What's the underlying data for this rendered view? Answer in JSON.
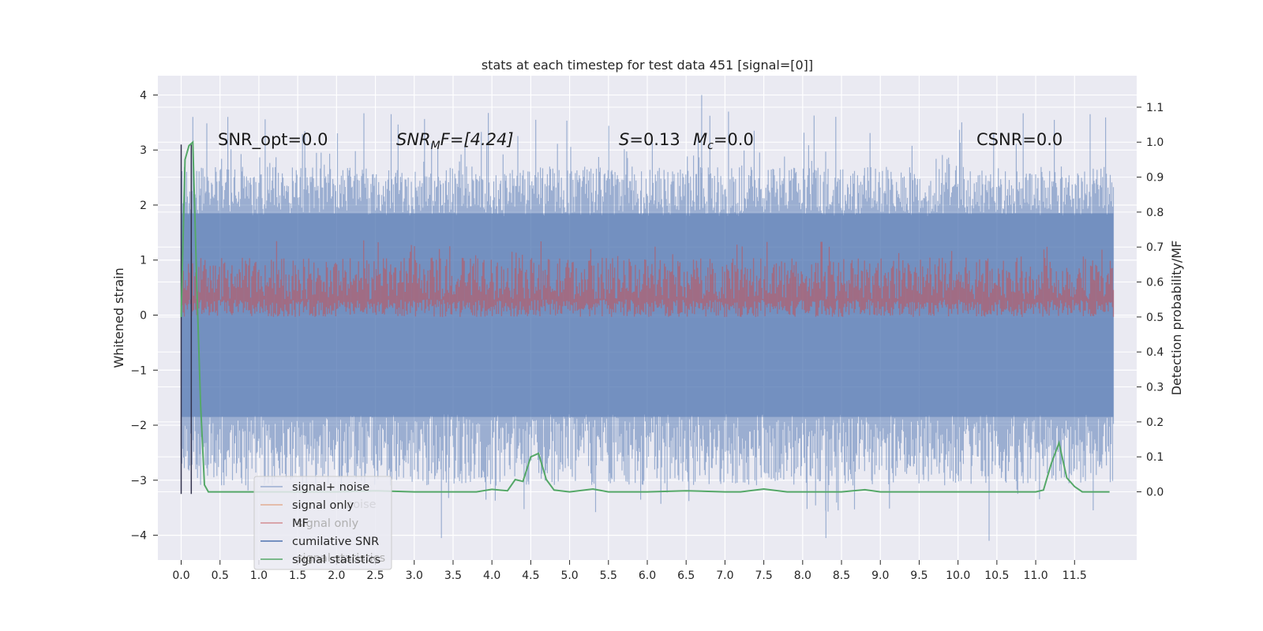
{
  "chart_data": {
    "type": "line",
    "title": "stats at each timestep for test data 451 [signal=[0]]",
    "xlabel": "",
    "ylabel_left": "Whitened strain",
    "ylabel_right": "Detection probability/MF",
    "x_ticks": [
      "0.0",
      "0.5",
      "1.0",
      "1.5",
      "2.0",
      "2.5",
      "3.0",
      "3.5",
      "4.0",
      "4.5",
      "5.0",
      "5.5",
      "6.0",
      "6.5",
      "7.0",
      "7.5",
      "8.0",
      "8.5",
      "9.0",
      "9.5",
      "10.0",
      "10.5",
      "11.0",
      "11.5"
    ],
    "y_left_ticks": [
      "−4",
      "−3",
      "−2",
      "−1",
      "0",
      "1",
      "2",
      "3",
      "4"
    ],
    "y_right_ticks": [
      "0.0",
      "0.1",
      "0.2",
      "0.3",
      "0.4",
      "0.5",
      "0.6",
      "0.7",
      "0.8",
      "0.9",
      "1.0",
      "1.1"
    ],
    "xlim": [
      -0.3,
      12.3
    ],
    "ylim_left": [
      -4.45,
      4.35
    ],
    "ylim_right": [
      -0.195,
      1.19
    ],
    "grid": true,
    "legend_position": "lower-left",
    "annotations": {
      "snr_opt": "SNR_opt=0.0",
      "snr_mf": "SNR",
      "snr_mf_sub": "M",
      "snr_mf_rest": "F=[4.24]",
      "s": "S",
      "s_rest": "=0.13",
      "mc": "M",
      "mc_sub": "c",
      "mc_rest": "=0.0",
      "csnr": "CSNR=0.0"
    },
    "series": [
      {
        "name": "signal+ noise",
        "color": "#4c72b0",
        "axis": "left",
        "description": "dense noise envelope",
        "envelope_upper": [
          1.6,
          2.6
        ],
        "envelope_lower": [
          -1.8,
          -3.2
        ],
        "extremes_max": 4.0,
        "extremes_min": -4.1
      },
      {
        "name": "signal only",
        "color": "#dd8452",
        "axis": "left",
        "values_flat": 0
      },
      {
        "name": "MF",
        "color": "#c44e52",
        "axis": "right",
        "band": [
          0.5,
          0.65
        ]
      },
      {
        "name": "cumilative SNR",
        "color": "#4c72b0",
        "axis": "left"
      },
      {
        "name": "signal statistics",
        "color": "#55a868",
        "axis": "right",
        "x": [
          0.0,
          0.05,
          0.1,
          0.15,
          0.2,
          0.25,
          0.3,
          0.35,
          0.5,
          1.0,
          2.0,
          2.5,
          3.0,
          3.5,
          3.8,
          4.0,
          4.2,
          4.3,
          4.4,
          4.5,
          4.6,
          4.7,
          4.8,
          5.0,
          5.3,
          5.5,
          6.0,
          6.5,
          7.0,
          7.2,
          7.5,
          7.8,
          8.0,
          8.5,
          8.8,
          9.0,
          9.5,
          10.0,
          10.5,
          11.0,
          11.1,
          11.2,
          11.3,
          11.4,
          11.5,
          11.6,
          11.8,
          11.95
        ],
        "y": [
          0.5,
          0.95,
          0.99,
          1.0,
          0.6,
          0.25,
          0.02,
          0.0,
          0.0,
          0.0,
          0.0,
          0.003,
          0.0,
          0.0,
          0.0,
          0.007,
          0.003,
          0.035,
          0.03,
          0.1,
          0.11,
          0.035,
          0.005,
          0.0,
          0.008,
          0.0,
          0.0,
          0.003,
          0.0,
          0.0,
          0.008,
          0.0,
          0.0,
          0.0,
          0.006,
          0.0,
          0.0,
          0.0,
          0.0,
          0.0,
          0.005,
          0.08,
          0.14,
          0.04,
          0.015,
          0.0,
          0.0,
          0.0
        ]
      }
    ],
    "legend": [
      "signal+ noise",
      "signal only",
      "MF",
      "cumilative SNR",
      "signal statistics"
    ],
    "legend_ghost": [
      "noise",
      "signal only",
      "signal statistics"
    ]
  }
}
